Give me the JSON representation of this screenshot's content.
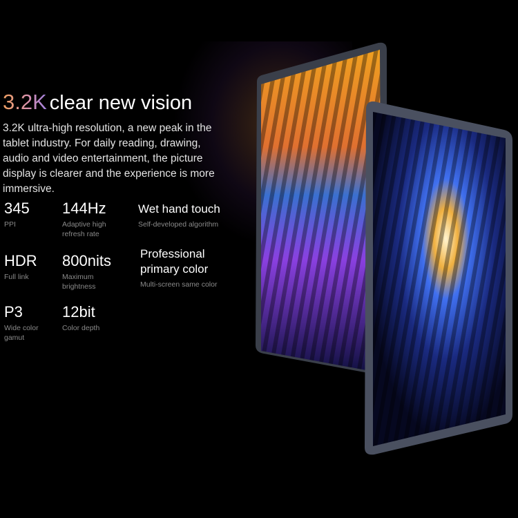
{
  "heading": {
    "highlight": "3.2K",
    "text": "clear new vision"
  },
  "description": "3.2K ultra-high resolution, a new peak in the tablet industry. For daily reading, drawing, audio and video entertainment, the picture display is clearer and the experience is more immersive.",
  "stats": [
    {
      "value": "345",
      "label": "PPI"
    },
    {
      "value": "144Hz",
      "label": "Adaptive high refresh rate"
    },
    {
      "value": "Wet hand touch",
      "label": "Self-developed algorithm"
    },
    {
      "value": "HDR",
      "label": "Full link"
    },
    {
      "value": "800nits",
      "label": "Maximum brightness"
    },
    {
      "value": "Professional primary color",
      "label": "Multi-screen same color"
    },
    {
      "value": "P3",
      "label": "Wide color gamut"
    },
    {
      "value": "12bit",
      "label": "Color depth"
    }
  ],
  "colors": {
    "background": "#000000",
    "highlight_start": "#f0a060",
    "highlight_end": "#a080e0",
    "label": "#8a8a8a"
  }
}
